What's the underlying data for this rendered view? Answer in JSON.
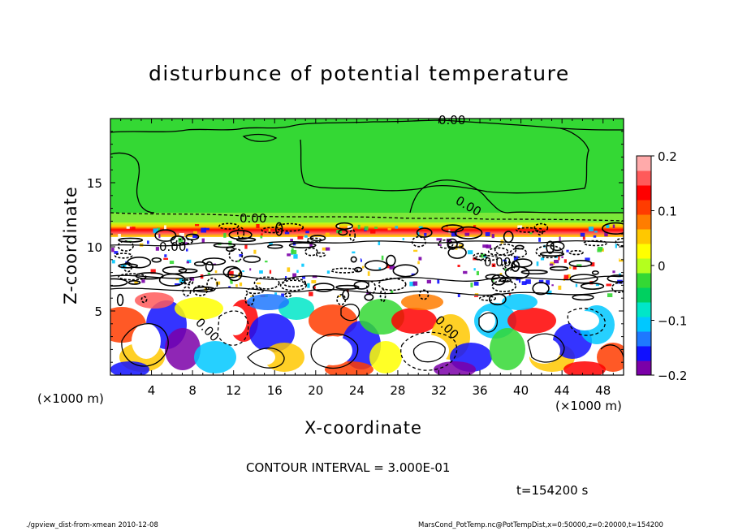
{
  "chart_data": {
    "type": "heatmap",
    "title": "disturbunce of potential temperature",
    "xlabel": "X-coordinate",
    "ylabel": "Z-coordinate",
    "x_unit_left": "(×1000 m)",
    "x_unit_right": "(×1000 m)",
    "xlim": [
      0,
      50
    ],
    "ylim": [
      0,
      20
    ],
    "x_ticks": [
      4,
      8,
      12,
      16,
      20,
      24,
      28,
      32,
      36,
      40,
      44,
      48
    ],
    "y_ticks": [
      5,
      10,
      15
    ],
    "colorbar": {
      "range": [
        -0.2,
        0.2
      ],
      "tick_values": [
        0.2,
        0.1,
        0,
        -0.1,
        -0.2
      ],
      "tick_labels": [
        "0.2",
        "0.1",
        "0",
        "−0.1",
        "−0.2"
      ],
      "colors": [
        "#7b00a8",
        "#1010ff",
        "#1e78ff",
        "#00c8ff",
        "#00e6c8",
        "#00d060",
        "#34d834",
        "#b4ff1e",
        "#ffff00",
        "#ffc800",
        "#ff7d00",
        "#ff3c00",
        "#ff0000",
        "#ff5a5a",
        "#ffaaaa"
      ]
    },
    "contour_labels": [
      "0.00",
      "0.00",
      "0.00",
      "0.00",
      "0.00",
      "0.00",
      "0.00"
    ],
    "contour_interval_text": "CONTOUR INTERVAL = 3.000E-01",
    "time_text": "t=154200 s"
  },
  "footer": {
    "left": "./gpview_dist-from-xmean  2010-12-08",
    "right": "MarsCond_PotTemp.nc@PotTempDist,x=0:50000,z=0:20000,t=154200"
  },
  "colors": {
    "upper_green": "#34d834",
    "inversion_red": "#ff0000",
    "positive_yellow": "#ffff00",
    "negative_blue": "#1010ff",
    "negative_purple": "#7b00a8",
    "zero_white": "#ffffff"
  }
}
